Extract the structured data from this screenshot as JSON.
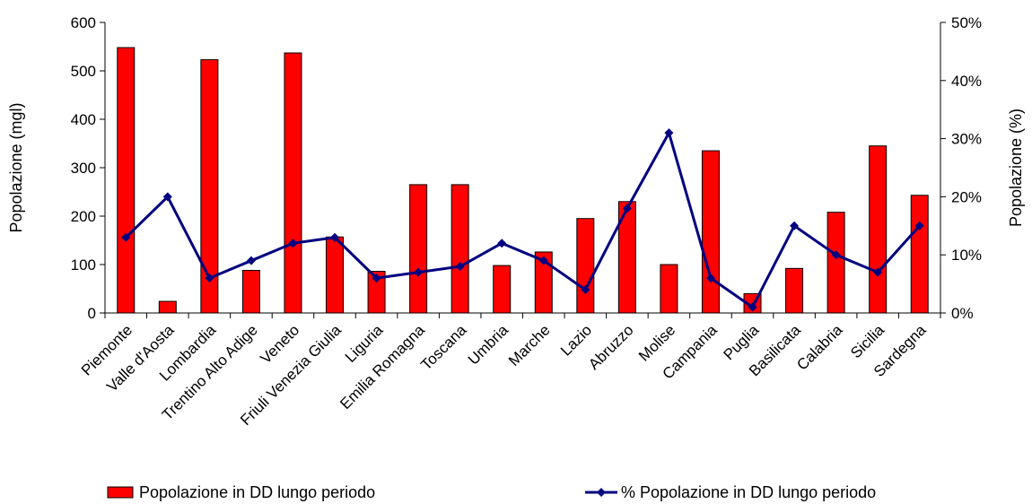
{
  "chart_data": {
    "type": "bar",
    "categories": [
      "Piemonte",
      "Valle d'Aosta",
      "Lombardia",
      "Trentino Alto Adige",
      "Veneto",
      "Friuli Venezia Giulia",
      "Liguria",
      "Emilia Romagna",
      "Toscana",
      "Umbria",
      "Marche",
      "Lazio",
      "Abruzzo",
      "Molise",
      "Campania",
      "Puglia",
      "Basilicata",
      "Calabria",
      "Sicilia",
      "Sardegna"
    ],
    "series": [
      {
        "name": "Popolazione in DD lungo periodo",
        "type": "bar",
        "axis": "left",
        "color": "#ff0000",
        "values": [
          548,
          24,
          523,
          88,
          537,
          157,
          86,
          265,
          265,
          98,
          126,
          195,
          230,
          100,
          335,
          40,
          92,
          208,
          345,
          243
        ]
      },
      {
        "name": "% Popolazione in DD lungo periodo",
        "type": "line",
        "axis": "right",
        "color": "#000080",
        "marker": "diamond",
        "values": [
          13,
          20,
          6,
          9,
          12,
          13,
          6,
          7,
          8,
          12,
          9,
          4,
          18,
          31,
          6,
          1,
          15,
          10,
          7,
          15
        ]
      }
    ],
    "title": "",
    "xlabel": "",
    "ylabel": "Popolazione (mgl)",
    "ylabel_right": "Popolazione (%)",
    "ylim": [
      0,
      600
    ],
    "yticks": [
      "0",
      "100",
      "200",
      "300",
      "400",
      "500",
      "600"
    ],
    "ylim_right": [
      0,
      50
    ],
    "yticks_right": [
      "0%",
      "10%",
      "20%",
      "30%",
      "40%",
      "50%"
    ],
    "grid": false,
    "legend_position": "bottom"
  }
}
